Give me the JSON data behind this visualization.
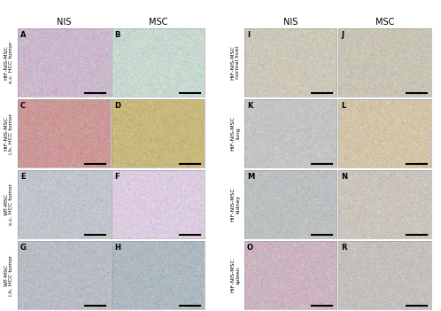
{
  "figsize": [
    4.98,
    3.51
  ],
  "dpi": 100,
  "left_col_headers": [
    "NIS",
    "MSC"
  ],
  "right_col_headers": [
    "NIS",
    "MSC"
  ],
  "left_row_labels": [
    "HIF-NIS-MSC\ns.c. HCC tumor",
    "HIF-NIS-MSC\ni.h. HCC tumor",
    "WT-MSC\ns.c. HCC tumor",
    "WT-MSC\ni.h. HCC tumor"
  ],
  "right_row_labels": [
    "HIF-NIS-MSC\nnormal liver",
    "HIF-NIS-MSC\nlung",
    "HIF-NIS-MSC\nkidney",
    "HIF-NIS-MSC\nspleen"
  ],
  "panel_labels_left": [
    "A",
    "B",
    "C",
    "D",
    "E",
    "F",
    "G",
    "H"
  ],
  "panel_labels_right": [
    "I",
    "J",
    "K",
    "L",
    "M",
    "N",
    "O",
    "R"
  ],
  "panel_colors_left": [
    [
      "#cbb8cc",
      "#c8d8d0"
    ],
    [
      "#cc9898",
      "#c8b87c"
    ],
    [
      "#c0c4cc",
      "#dccce0"
    ],
    [
      "#b8bcc4",
      "#aeb8c0"
    ]
  ],
  "panel_colors_right": [
    [
      "#ccc8b8",
      "#c8c4b4"
    ],
    [
      "#c4c4c4",
      "#d4c4a8"
    ],
    [
      "#bcc0c0",
      "#cac4bc"
    ],
    [
      "#ccb4c0",
      "#c4c0bc"
    ]
  ],
  "header_fontsize": 7,
  "label_fontsize": 4.5,
  "panel_letter_fontsize": 6
}
